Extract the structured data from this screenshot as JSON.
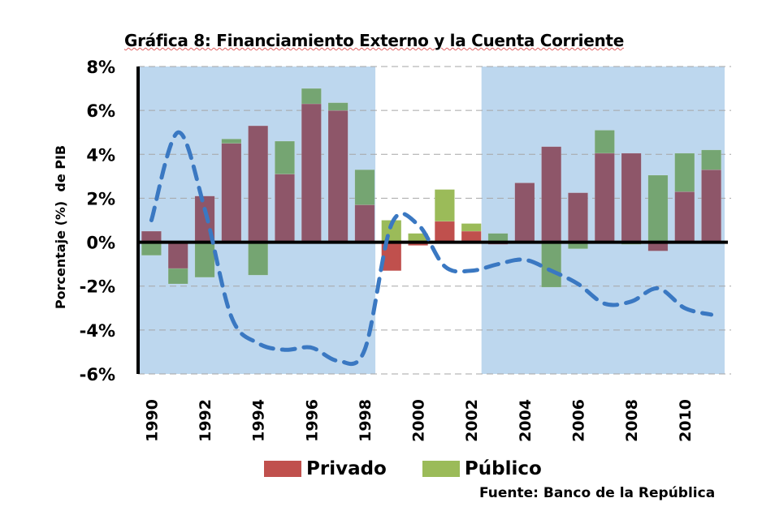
{
  "chart_data": {
    "type": "bar",
    "subtype": "stacked-bar-with-line",
    "title": "Gráfica 8: Financiamiento Externo y la Cuenta Corriente",
    "xlabel": "",
    "ylabel": "Porcentaje (%)  de PIB",
    "ylim": [
      -6,
      8
    ],
    "yticks": [
      8,
      6,
      4,
      2,
      0,
      -2,
      -4,
      -6
    ],
    "ytick_labels": [
      "8%",
      "6%",
      "4%",
      "2%",
      "0%",
      "-2%",
      "-4%",
      "-6%"
    ],
    "grid": "horizontal-dashed",
    "categories": [
      "1990",
      "1991",
      "1992",
      "1993",
      "1994",
      "1995",
      "1996",
      "1997",
      "1998",
      "1999",
      "2000",
      "2001",
      "2002",
      "2003",
      "2004",
      "2005",
      "2006",
      "2007",
      "2008",
      "2009",
      "2010",
      "2011"
    ],
    "xtick_labels": [
      "1990",
      "1992",
      "1994",
      "1996",
      "1998",
      "2000",
      "2002",
      "2004",
      "2006",
      "2008",
      "2010"
    ],
    "series": [
      {
        "name": "Privado",
        "kind": "bar",
        "values": [
          0.5,
          -1.2,
          2.1,
          4.5,
          5.3,
          3.1,
          6.3,
          6.0,
          1.7,
          -1.3,
          -0.15,
          0.95,
          0.5,
          -0.1,
          2.7,
          4.35,
          2.25,
          4.05,
          4.05,
          -0.4,
          2.3,
          3.3
        ]
      },
      {
        "name": "Público",
        "kind": "bar",
        "values": [
          -0.6,
          -0.7,
          -1.6,
          0.2,
          -1.5,
          1.5,
          0.7,
          0.35,
          1.6,
          1.0,
          0.4,
          1.45,
          0.35,
          0.4,
          0.0,
          -2.05,
          -0.3,
          1.05,
          -0.1,
          3.05,
          1.75,
          0.9
        ]
      },
      {
        "name": "Cuenta Corriente",
        "kind": "line",
        "style": "dashed",
        "values": [
          1.0,
          5.0,
          1.5,
          -3.4,
          -4.6,
          -4.9,
          -4.8,
          -5.4,
          -4.9,
          0.8,
          0.8,
          -1.1,
          -1.3,
          -1.0,
          -0.8,
          -1.3,
          -1.9,
          -2.8,
          -2.7,
          -2.1,
          -3.0,
          -3.3
        ]
      }
    ],
    "shaded_periods": [
      {
        "from": "1990",
        "to": "1998"
      },
      {
        "from": "2003",
        "to": "2011"
      }
    ],
    "legend": {
      "position": "bottom",
      "entries": [
        "Privado",
        "Público"
      ]
    },
    "source": "Fuente: Banco de la República"
  },
  "colors": {
    "privado_shaded": "#8E5669",
    "publico_shaded": "#75A572",
    "privado": "#C0504D",
    "publico": "#9BBB59",
    "shade": "#BDD7EE",
    "line": "#3A78C2",
    "grid": "#A6A6A6",
    "axis": "#000000"
  }
}
